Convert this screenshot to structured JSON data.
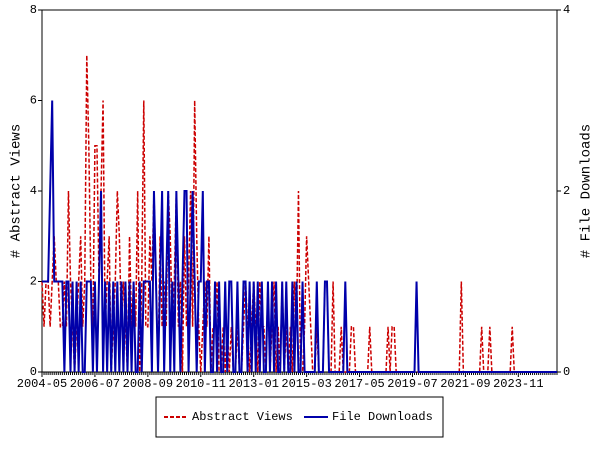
{
  "chart_data": {
    "type": "line",
    "y_label": "# Abstract Views",
    "y2_label": "# File Downloads",
    "categories": [
      "2004-05",
      null,
      null,
      null,
      null,
      null,
      null,
      null,
      null,
      null,
      null,
      null,
      null,
      null,
      null,
      null,
      null,
      null,
      null,
      null,
      null,
      null,
      null,
      null,
      null,
      null,
      "2006-07",
      null,
      null,
      null,
      null,
      null,
      null,
      null,
      null,
      null,
      null,
      null,
      null,
      null,
      null,
      null,
      null,
      null,
      null,
      null,
      null,
      null,
      null,
      null,
      null,
      null,
      "2008-09",
      null,
      null,
      null,
      null,
      null,
      null,
      null,
      null,
      null,
      null,
      null,
      null,
      null,
      null,
      null,
      null,
      null,
      null,
      null,
      null,
      null,
      null,
      null,
      null,
      null,
      "2010-11",
      null,
      null,
      null,
      null,
      null,
      null,
      null,
      null,
      null,
      null,
      null,
      null,
      null,
      null,
      null,
      null,
      null,
      null,
      null,
      null,
      null,
      null,
      null,
      null,
      null,
      "2013-01",
      null,
      null,
      null,
      null,
      null,
      null,
      null,
      null,
      null,
      null,
      null,
      null,
      null,
      null,
      null,
      null,
      null,
      null,
      null,
      null,
      null,
      null,
      null,
      null,
      null,
      "2015-03",
      null,
      null,
      null,
      null,
      null,
      null,
      null,
      null,
      null,
      null,
      null,
      null,
      null,
      null,
      null,
      null,
      null,
      null,
      null,
      null,
      null,
      null,
      null,
      null,
      null,
      "2017-05",
      null,
      null,
      null,
      null,
      null,
      null,
      null,
      null,
      null,
      null,
      null,
      null,
      null,
      null,
      null,
      null,
      null,
      null,
      null,
      null,
      null,
      null,
      null,
      null,
      null,
      "2019-07",
      null,
      null,
      null,
      null,
      null,
      null,
      null,
      null,
      null,
      null,
      null,
      null,
      null,
      null,
      null,
      null,
      null,
      null,
      null,
      null,
      null,
      null,
      null,
      null,
      null,
      "2021-09",
      null,
      null,
      null,
      null,
      null,
      null,
      null,
      null,
      null,
      null,
      null,
      null,
      null,
      null,
      null,
      null,
      null,
      null,
      null,
      null,
      null,
      null,
      null,
      null,
      null,
      "2023-11",
      null,
      null,
      null,
      null,
      null,
      null,
      null,
      null,
      null,
      null,
      null,
      null,
      null,
      null,
      null,
      null,
      null,
      null,
      null
    ],
    "series": [
      {
        "name": "Abstract Views",
        "color": "#cc0000",
        "dashed": true,
        "values": [
          2,
          1,
          2,
          2,
          1,
          2,
          3,
          2,
          2,
          1,
          1,
          2,
          1,
          4,
          2,
          1,
          0,
          1,
          2,
          3,
          1,
          2,
          7,
          5,
          2,
          1,
          5,
          5,
          2,
          4,
          6,
          1,
          2,
          3,
          0,
          1,
          2,
          4,
          3,
          1,
          2,
          1,
          0,
          3,
          1,
          2,
          1,
          4,
          0,
          2,
          6,
          1,
          1,
          3,
          2,
          4,
          2,
          0,
          3,
          1,
          2,
          1,
          4,
          3,
          1,
          2,
          4,
          1,
          2,
          0,
          3,
          1,
          2,
          4,
          1,
          6,
          3,
          1,
          0,
          1,
          2,
          1,
          3,
          0,
          1,
          1,
          2,
          0,
          0,
          1,
          0,
          1,
          0,
          1,
          0,
          0,
          1,
          0,
          0,
          1,
          2,
          1,
          0,
          1,
          2,
          1,
          0,
          2,
          1,
          1,
          0,
          2,
          0,
          1,
          2,
          0,
          1,
          0,
          2,
          0,
          1,
          0,
          1,
          0,
          2,
          1,
          4,
          0,
          0,
          1,
          3,
          2,
          1,
          0,
          0,
          1,
          0,
          0,
          0,
          2,
          2,
          0,
          0,
          2,
          0,
          0,
          0,
          1,
          0,
          0,
          0,
          0,
          1,
          1,
          0,
          0,
          0,
          0,
          0,
          0,
          0,
          1,
          0,
          0,
          0,
          0,
          0,
          0,
          0,
          0,
          1,
          0,
          1,
          1,
          0,
          0,
          0,
          0,
          0,
          0,
          0,
          0,
          0,
          0,
          0,
          0,
          0,
          0,
          0,
          0,
          0,
          0,
          0,
          0,
          0,
          0,
          0,
          0,
          0,
          0,
          0,
          0,
          0,
          0,
          0,
          0,
          2,
          0,
          0,
          0,
          0,
          0,
          0,
          0,
          0,
          0,
          1,
          0,
          0,
          0,
          1,
          0,
          0,
          0,
          0,
          0,
          0,
          0,
          0,
          0,
          0,
          1,
          0,
          0,
          0,
          0,
          0,
          0,
          0,
          0,
          0,
          0,
          0,
          0,
          0,
          0,
          0,
          0,
          0,
          0,
          0,
          0,
          0,
          0
        ]
      },
      {
        "name": "File Downloads",
        "color": "#0000aa",
        "dashed": false,
        "axis": "y2",
        "values": [
          1,
          1,
          1,
          1,
          2,
          3,
          1,
          1,
          1,
          1,
          1,
          0,
          1,
          1,
          0,
          1,
          0,
          1,
          0,
          1,
          0,
          0,
          1,
          1,
          1,
          0,
          1,
          0,
          1,
          2,
          0,
          1,
          0,
          1,
          0,
          1,
          0,
          1,
          0,
          1,
          0,
          1,
          0,
          1,
          0,
          1,
          0,
          0,
          1,
          0,
          1,
          1,
          1,
          1,
          0,
          2,
          1,
          0,
          1,
          2,
          0,
          1,
          2,
          0,
          1,
          0,
          2,
          1,
          0,
          1,
          2,
          2,
          0,
          1,
          2,
          1,
          0,
          1,
          1,
          2,
          0,
          1,
          1,
          0,
          0,
          1,
          0,
          1,
          0,
          0,
          1,
          0,
          1,
          1,
          0,
          0,
          1,
          0,
          0,
          1,
          1,
          0,
          1,
          0,
          1,
          0,
          1,
          0,
          1,
          0,
          0,
          1,
          0,
          1,
          0,
          1,
          0,
          0,
          1,
          0,
          1,
          0,
          0,
          1,
          0,
          1,
          0,
          0,
          1,
          0,
          0,
          0,
          0,
          0,
          0,
          1,
          0,
          0,
          0,
          1,
          1,
          0,
          0,
          0,
          0,
          0,
          0,
          0,
          0,
          1,
          0,
          0,
          0,
          0,
          0,
          0,
          0,
          0,
          0,
          0,
          0,
          0,
          0,
          0,
          0,
          0,
          0,
          0,
          0,
          0,
          0,
          0,
          0,
          0,
          0,
          0,
          0,
          0,
          0,
          0,
          0,
          0,
          0,
          0,
          1,
          0,
          0,
          0,
          0,
          0,
          0,
          0,
          0,
          0,
          0,
          0,
          0,
          0,
          0,
          0,
          0,
          0,
          0,
          0,
          0,
          0,
          0,
          0,
          0,
          0,
          0,
          0,
          0,
          0,
          0,
          0,
          0,
          0,
          0,
          0,
          0,
          0,
          0,
          0,
          0,
          0,
          0,
          0,
          0,
          0,
          0,
          0,
          0,
          0,
          0,
          0,
          0,
          0,
          0,
          0,
          0,
          0,
          0,
          0,
          0,
          0,
          0,
          0,
          0,
          0,
          0,
          0,
          0,
          0
        ]
      }
    ],
    "ylim": [
      0,
      8
    ],
    "yticks": [
      0,
      2,
      4,
      6,
      8
    ],
    "y2lim": [
      0,
      4
    ],
    "y2ticks": [
      0,
      2,
      4
    ],
    "legend": "bottom"
  }
}
